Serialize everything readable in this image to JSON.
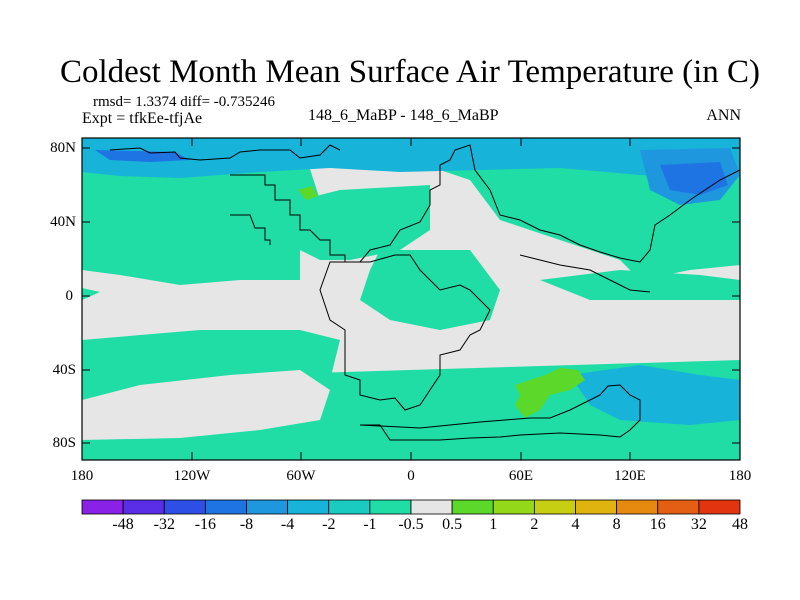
{
  "title": "Coldest Month Mean Surface Air Temperature (in C)",
  "stats_line": "rmsd= 1.3374 diff= -0.735246",
  "expt_line": "Expt = tfkEe-tfjAe",
  "cases_line": "148_6_MaBP - 148_6_MaBP",
  "season": "ANN",
  "y_ticks": [
    "80N",
    "40N",
    "0",
    "40S",
    "80S"
  ],
  "x_ticks": [
    "180",
    "120W",
    "60W",
    "0",
    "60E",
    "120E",
    "180"
  ],
  "colorbar": {
    "colors": [
      "#8a21e6",
      "#5a2ee6",
      "#2d4fe6",
      "#1f74e3",
      "#1f97df",
      "#17b3d9",
      "#1acbc2",
      "#1fdda5",
      "#e6e6e6",
      "#5bd82a",
      "#93d91a",
      "#c7cf13",
      "#e0b40f",
      "#e58a0f",
      "#e45e13",
      "#e2340f"
    ],
    "labels": [
      "-48",
      "-32",
      "-16",
      "-8",
      "-4",
      "-2",
      "-1",
      "-0.5",
      "0.5",
      "1",
      "2",
      "4",
      "8",
      "16",
      "32",
      "48"
    ]
  },
  "palette": {
    "ocean_light": "#1fdda5",
    "ocean_mid": "#17b3d9",
    "ocean_dark": "#1f97df",
    "ocean_deep": "#1f74e3",
    "neutral": "#e6e6e6",
    "warm": "#5bd82a"
  }
}
